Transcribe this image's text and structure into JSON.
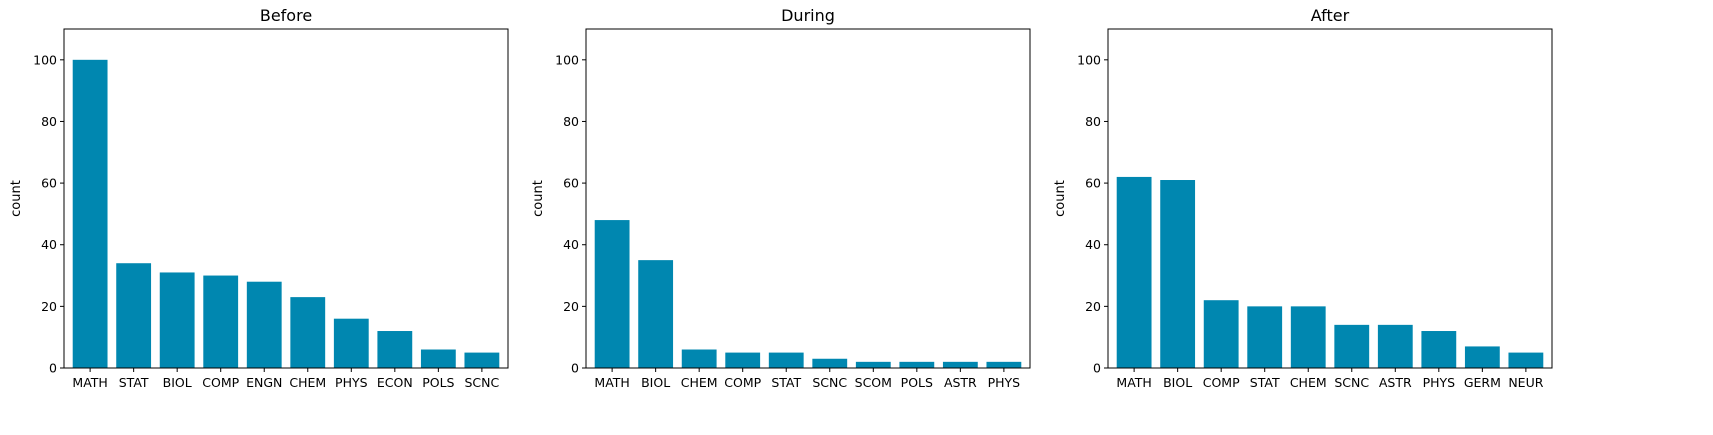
{
  "chart_data": [
    {
      "type": "bar",
      "title": "Before",
      "xlabel": "",
      "ylabel": "count",
      "ylim": [
        0,
        110
      ],
      "yticks": [
        0,
        20,
        40,
        60,
        80,
        100
      ],
      "grid": false,
      "color": "#0087b0",
      "categories": [
        "MATH",
        "STAT",
        "BIOL",
        "COMP",
        "ENGN",
        "CHEM",
        "PHYS",
        "ECON",
        "POLS",
        "SCNC"
      ],
      "values": [
        100,
        34,
        31,
        30,
        28,
        23,
        16,
        12,
        6,
        5
      ]
    },
    {
      "type": "bar",
      "title": "During",
      "xlabel": "",
      "ylabel": "count",
      "ylim": [
        0,
        110
      ],
      "yticks": [
        0,
        20,
        40,
        60,
        80,
        100
      ],
      "grid": false,
      "color": "#0087b0",
      "categories": [
        "MATH",
        "BIOL",
        "CHEM",
        "COMP",
        "STAT",
        "SCNC",
        "SCOM",
        "POLS",
        "ASTR",
        "PHYS"
      ],
      "values": [
        48,
        35,
        6,
        5,
        5,
        3,
        2,
        2,
        2,
        2
      ]
    },
    {
      "type": "bar",
      "title": "After",
      "xlabel": "",
      "ylabel": "count",
      "ylim": [
        0,
        110
      ],
      "yticks": [
        0,
        20,
        40,
        60,
        80,
        100
      ],
      "grid": false,
      "color": "#0087b0",
      "categories": [
        "MATH",
        "BIOL",
        "COMP",
        "STAT",
        "CHEM",
        "SCNC",
        "ASTR",
        "PHYS",
        "GERM",
        "NEUR"
      ],
      "values": [
        62,
        61,
        22,
        20,
        20,
        14,
        14,
        12,
        7,
        5
      ]
    }
  ]
}
